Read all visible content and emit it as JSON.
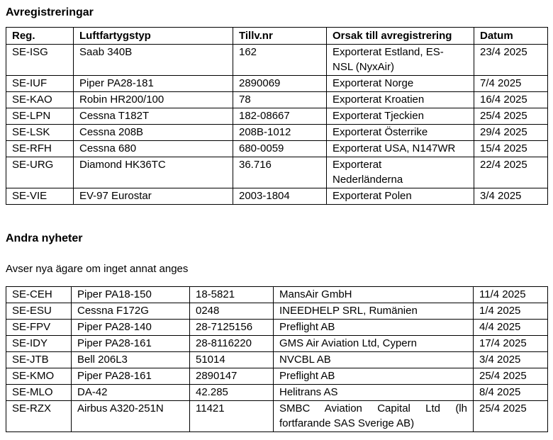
{
  "avregistreringar": {
    "title": "Avregistreringar",
    "headers": [
      "Reg.",
      "Luftfartygstyp",
      "Tillv.nr",
      "Orsak till avregistrering",
      "Datum"
    ],
    "rows": [
      [
        "SE-ISG",
        "Saab 340B",
        "162",
        "Exporterat Estland, ES-\nNSL (NyxAir)",
        "23/4 2025"
      ],
      [
        "SE-IUF",
        "Piper PA28-181",
        "2890069",
        "Exporterat Norge",
        "7/4 2025"
      ],
      [
        "SE-KAO",
        "Robin HR200/100",
        "78",
        "Exporterat Kroatien",
        "16/4 2025"
      ],
      [
        "SE-LPN",
        "Cessna T182T",
        "182-08667",
        "Exporterat Tjeckien",
        "25/4 2025"
      ],
      [
        "SE-LSK",
        "Cessna 208B",
        "208B-1012",
        "Exporterat Österrike",
        "29/4 2025"
      ],
      [
        "SE-RFH",
        "Cessna 680",
        "680-0059",
        "Exporterat USA, N147WR",
        "15/4 2025"
      ],
      [
        "SE-URG",
        "Diamond HK36TC",
        "36.716",
        "Exporterat\nNederländerna",
        "22/4 2025"
      ],
      [
        "SE-VIE",
        "EV-97 Eurostar",
        "2003-1804",
        "Exporterat Polen",
        "3/4 2025"
      ]
    ]
  },
  "andra_nyheter": {
    "title": "Andra nyheter",
    "note": "Avser nya ägare om inget annat anges",
    "rows": [
      [
        "SE-CEH",
        "Piper PA18-150",
        "18-5821",
        "MansAir GmbH",
        "11/4 2025"
      ],
      [
        "SE-ESU",
        "Cessna F172G",
        "0248",
        "INEEDHELP SRL, Rumänien",
        "1/4 2025"
      ],
      [
        "SE-FPV",
        "Piper PA28-140",
        "28-7125156",
        "Preflight AB",
        "4/4 2025"
      ],
      [
        "SE-IDY",
        "Piper PA28-161",
        "28-8116220",
        "GMS Air Aviation Ltd, Cypern",
        "17/4 2025"
      ],
      [
        "SE-JTB",
        "Bell 206L3",
        "51014",
        "NVCBL AB",
        "3/4 2025"
      ],
      [
        "SE-KMO",
        "Piper PA28-161",
        "2890147",
        "Preflight AB",
        "25/4 2025"
      ],
      [
        "SE-MLO",
        "DA-42",
        "42.285",
        "Helitrans AS",
        "8/4 2025"
      ],
      [
        "SE-RZX",
        "Airbus A320-251N",
        "11421",
        "SMBC Aviation Capital Ltd (lh fortfarande SAS Sverige AB)",
        "25/4 2025"
      ]
    ]
  }
}
